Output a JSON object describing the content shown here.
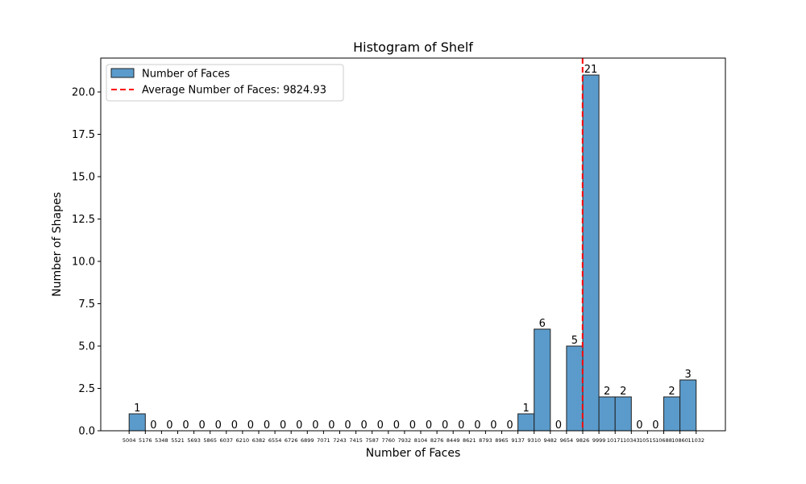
{
  "chart_data": {
    "type": "bar",
    "title": "Histogram of Shelf",
    "xlabel": "Number of Faces",
    "ylabel": "Number of Shapes",
    "ylim": [
      0,
      22
    ],
    "grid": false,
    "legend_position": "top-left",
    "bin_edges": [
      5004,
      5176,
      5348,
      5521,
      5693,
      5865,
      6037,
      6210,
      6382,
      6554,
      6726,
      6899,
      7071,
      7243,
      7415,
      7587,
      7760,
      7932,
      8104,
      8276,
      8449,
      8621,
      8793,
      8965,
      9137,
      9310,
      9482,
      9654,
      9826,
      9999,
      10171,
      10343,
      10515,
      10688,
      10860,
      11032
    ],
    "values": [
      1,
      0,
      0,
      0,
      0,
      0,
      0,
      0,
      0,
      0,
      0,
      0,
      0,
      0,
      0,
      0,
      0,
      0,
      0,
      0,
      0,
      0,
      0,
      0,
      1,
      6,
      0,
      5,
      21,
      2,
      2,
      0,
      0,
      2,
      3
    ],
    "yticks": [
      "0.0",
      "2.5",
      "5.0",
      "7.5",
      "10.0",
      "12.5",
      "15.0",
      "17.5",
      "20.0"
    ],
    "average": 9824.93,
    "series": [
      {
        "name": "Number of Faces",
        "color": "#5b9bcb"
      }
    ],
    "reference_line": {
      "name": "Average Number of Faces: 9824.93",
      "color": "#ff0000"
    }
  }
}
